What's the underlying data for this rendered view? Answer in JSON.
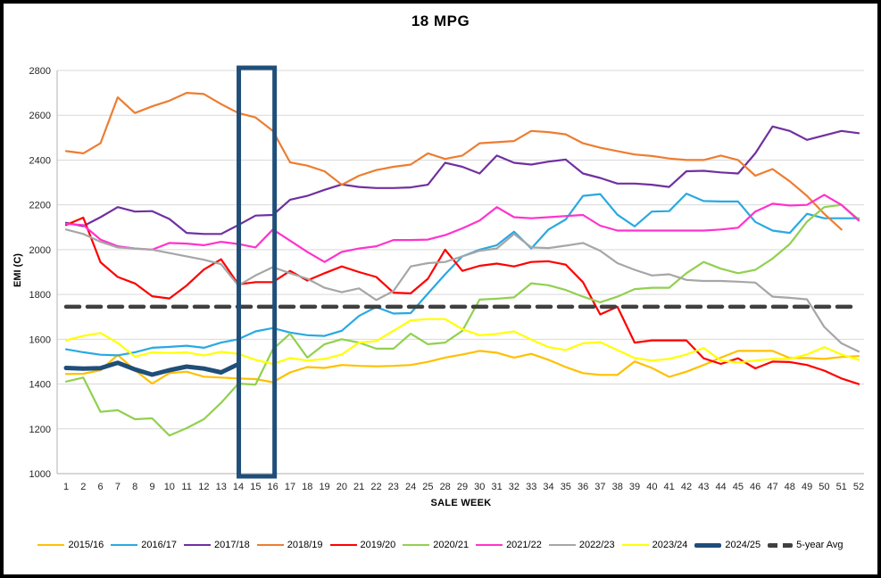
{
  "chart_data": {
    "type": "line",
    "title": "18 MPG",
    "xlabel": "SALE WEEK",
    "ylabel": "EMI (C)",
    "ylim": [
      1000,
      2800
    ],
    "y_ticks": [
      1000,
      1200,
      1400,
      1600,
      1800,
      2000,
      2200,
      2400,
      2600,
      2800
    ],
    "grid": "horizontal",
    "legend_position": "bottom",
    "colors": {
      "grid": "#D9D9D9",
      "axis": "#BFBFBF",
      "highlight_box": "#1F4E79",
      "tick_text": "#262626"
    },
    "categories": [
      "1",
      "2",
      "6",
      "7",
      "8",
      "9",
      "10",
      "11",
      "12",
      "13",
      "14",
      "15",
      "16",
      "17",
      "18",
      "19",
      "20",
      "21",
      "22",
      "23",
      "24",
      "25",
      "28",
      "29",
      "30",
      "31",
      "32",
      "33",
      "34",
      "35",
      "36",
      "37",
      "38",
      "39",
      "40",
      "41",
      "42",
      "43",
      "44",
      "45",
      "46",
      "47",
      "48",
      "49",
      "50",
      "51",
      "52"
    ],
    "highlight_box": {
      "from_category": "14",
      "to_category": "16",
      "color": "#1F4E79",
      "border_width": 5
    },
    "series": [
      {
        "name": "2015/16",
        "color": "#FFC000",
        "width": 2.2,
        "values": [
          1445,
          1446,
          1462,
          1530,
          1462,
          1402,
          1449,
          1455,
          1433,
          1429,
          1425,
          1422,
          1408,
          1452,
          1476,
          1472,
          1485,
          1481,
          1479,
          1481,
          1485,
          1499,
          1518,
          1532,
          1548,
          1540,
          1518,
          1535,
          1508,
          1476,
          1449,
          1441,
          1441,
          1501,
          1472,
          1432,
          1455,
          1485,
          1518,
          1548,
          1548,
          1548,
          1516,
          1516,
          1512,
          1521,
          1525
        ]
      },
      {
        "name": "2016/17",
        "color": "#29A9E1",
        "width": 2.2,
        "values": [
          1555,
          1542,
          1531,
          1528,
          1542,
          1562,
          1566,
          1571,
          1562,
          1585,
          1600,
          1635,
          1650,
          1630,
          1618,
          1615,
          1638,
          1704,
          1744,
          1715,
          1717,
          1804,
          1890,
          1970,
          2000,
          2020,
          2080,
          2005,
          2090,
          2135,
          2240,
          2248,
          2156,
          2104,
          2170,
          2172,
          2250,
          2217,
          2215,
          2215,
          2124,
          2085,
          2075,
          2160,
          2140,
          2140,
          2140
        ]
      },
      {
        "name": "2017/18",
        "color": "#7030A0",
        "width": 2.2,
        "values": [
          2120,
          2105,
          2145,
          2190,
          2170,
          2172,
          2137,
          2075,
          2070,
          2070,
          2110,
          2152,
          2155,
          2223,
          2240,
          2267,
          2291,
          2280,
          2275,
          2275,
          2278,
          2290,
          2388,
          2370,
          2340,
          2420,
          2388,
          2380,
          2393,
          2402,
          2340,
          2320,
          2295,
          2295,
          2290,
          2280,
          2350,
          2352,
          2345,
          2340,
          2430,
          2550,
          2530,
          2490,
          2510,
          2530,
          2520
        ]
      },
      {
        "name": "2018/19",
        "color": "#ED7D31",
        "width": 2.2,
        "values": [
          2440,
          2430,
          2475,
          2680,
          2610,
          2640,
          2665,
          2700,
          2695,
          2650,
          2610,
          2590,
          2530,
          2390,
          2375,
          2350,
          2290,
          2330,
          2355,
          2370,
          2380,
          2430,
          2405,
          2420,
          2475,
          2480,
          2485,
          2530,
          2525,
          2515,
          2475,
          2455,
          2440,
          2425,
          2418,
          2407,
          2400,
          2400,
          2420,
          2400,
          2330,
          2360,
          2305,
          2240,
          2160,
          2090,
          null
        ]
      },
      {
        "name": "2019/20",
        "color": "#FF0000",
        "width": 2.2,
        "values": [
          2110,
          2143,
          1944,
          1878,
          1849,
          1792,
          1782,
          1840,
          1911,
          1957,
          1845,
          1855,
          1855,
          1905,
          1862,
          1895,
          1925,
          1900,
          1878,
          1808,
          1805,
          1870,
          2000,
          1905,
          1928,
          1938,
          1925,
          1945,
          1948,
          1933,
          1855,
          1711,
          1745,
          1585,
          1595,
          1595,
          1595,
          1515,
          1490,
          1515,
          1470,
          1500,
          1498,
          1485,
          1460,
          1425,
          1400
        ]
      },
      {
        "name": "2020/21",
        "color": "#92D050",
        "width": 2.2,
        "values": [
          1411,
          1429,
          1276,
          1283,
          1243,
          1247,
          1170,
          1203,
          1243,
          1316,
          1402,
          1398,
          1555,
          1625,
          1518,
          1578,
          1600,
          1585,
          1558,
          1558,
          1625,
          1578,
          1585,
          1638,
          1777,
          1781,
          1787,
          1850,
          1841,
          1820,
          1790,
          1765,
          1790,
          1824,
          1830,
          1830,
          1895,
          1945,
          1915,
          1895,
          1910,
          1960,
          2025,
          2125,
          2190,
          2200,
          2135
        ]
      },
      {
        "name": "2021/22",
        "color": "#FF33CC",
        "width": 2.2,
        "values": [
          2115,
          2110,
          2045,
          2015,
          2005,
          2000,
          2030,
          2027,
          2020,
          2035,
          2025,
          2010,
          2090,
          2040,
          1990,
          1945,
          1990,
          2005,
          2015,
          2043,
          2043,
          2045,
          2065,
          2095,
          2130,
          2190,
          2145,
          2140,
          2145,
          2150,
          2155,
          2107,
          2085,
          2085,
          2085,
          2085,
          2085,
          2085,
          2090,
          2098,
          2170,
          2205,
          2197,
          2200,
          2245,
          2200,
          2130
        ]
      },
      {
        "name": "2022/23",
        "color": "#A6A6A6",
        "width": 2.2,
        "values": [
          2090,
          2070,
          2035,
          2010,
          2005,
          2000,
          1985,
          1970,
          1955,
          1935,
          1840,
          1885,
          1922,
          1895,
          1870,
          1830,
          1810,
          1827,
          1775,
          1815,
          1925,
          1940,
          1945,
          1970,
          1995,
          2005,
          2070,
          2010,
          2007,
          2018,
          2030,
          1995,
          1940,
          1910,
          1885,
          1890,
          1865,
          1860,
          1860,
          1857,
          1853,
          1790,
          1785,
          1778,
          1655,
          1582,
          1545
        ]
      },
      {
        "name": "2023/24",
        "color": "#FFFF00",
        "width": 2.2,
        "values": [
          1595,
          1615,
          1628,
          1584,
          1522,
          1541,
          1539,
          1541,
          1528,
          1544,
          1535,
          1508,
          1490,
          1516,
          1505,
          1512,
          1532,
          1585,
          1592,
          1638,
          1684,
          1690,
          1690,
          1645,
          1618,
          1624,
          1635,
          1598,
          1565,
          1552,
          1582,
          1587,
          1552,
          1516,
          1505,
          1512,
          1532,
          1561,
          1505,
          1496,
          1505,
          1512,
          1512,
          1532,
          1565,
          1532,
          1508
        ]
      },
      {
        "name": "2024/25",
        "color": "#1F4E79",
        "width": 5,
        "values": [
          1472,
          1469,
          1471,
          1495,
          1465,
          1442,
          1462,
          1478,
          1469,
          1452,
          1489,
          null,
          null,
          null,
          null,
          null,
          null,
          null,
          null,
          null,
          null,
          null,
          null,
          null,
          null,
          null,
          null,
          null,
          null,
          null,
          null,
          null,
          null,
          null,
          null,
          null,
          null,
          null,
          null,
          null,
          null,
          null,
          null,
          null,
          null,
          null,
          null
        ]
      },
      {
        "name": "5-year Avg",
        "color": "#404040",
        "width": 4.5,
        "dash": [
          15,
          9
        ],
        "values": [
          1745,
          1745,
          1745,
          1745,
          1745,
          1745,
          1745,
          1745,
          1745,
          1745,
          1745,
          1745,
          1745,
          1745,
          1745,
          1745,
          1745,
          1745,
          1745,
          1745,
          1745,
          1745,
          1745,
          1745,
          1745,
          1745,
          1745,
          1745,
          1745,
          1745,
          1745,
          1745,
          1745,
          1745,
          1745,
          1745,
          1745,
          1745,
          1745,
          1745,
          1745,
          1745,
          1745,
          1745,
          1745,
          1745,
          1745
        ]
      }
    ]
  }
}
